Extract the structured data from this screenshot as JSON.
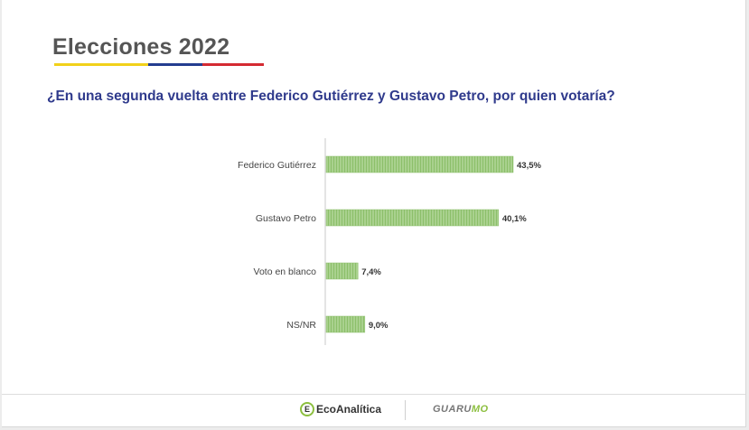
{
  "header": {
    "title": "Elecciones 2022",
    "question": "¿En una segunda vuelta entre Federico Gutiérrez y Gustavo Petro, por quien votaría?"
  },
  "colors": {
    "bar": "#a9d18e",
    "bar_stripe": "#8cbf6a",
    "title": "#555555",
    "question": "#2f3a8c",
    "flag_yellow": "#f1d11a",
    "flag_blue": "#243d8f",
    "flag_red": "#d42a32"
  },
  "chart_data": {
    "type": "bar",
    "orientation": "horizontal",
    "title": "",
    "xlabel": "",
    "ylabel": "",
    "categories": [
      "Federico Gutiérrez",
      "Gustavo Petro",
      "Voto en blanco",
      "NS/NR"
    ],
    "values": [
      43.5,
      40.1,
      7.4,
      9.0
    ],
    "value_labels": [
      "43,5%",
      "40,1%",
      "7,4%",
      "9,0%"
    ],
    "xlim": [
      0,
      100
    ],
    "grid": false,
    "legend": "none"
  },
  "footer": {
    "logo1_mark": "E",
    "logo1_text": "EcoAnalítica",
    "logo2_main": "GUARU",
    "logo2_accent": "MO"
  }
}
